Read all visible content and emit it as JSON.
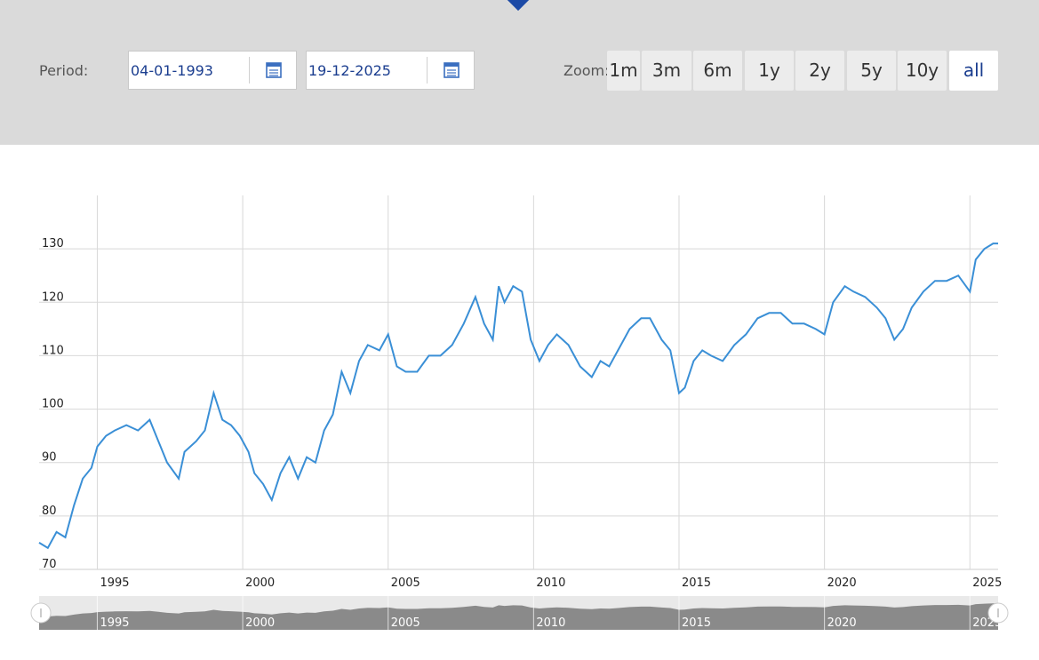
{
  "toolbar": {
    "period_label": "Period:",
    "start_date": "04-01-1993",
    "end_date": "19-12-2025",
    "zoom_label": "Zoom:",
    "zoom_options": [
      "1m",
      "3m",
      "6m",
      "1y",
      "2y",
      "5y",
      "10y",
      "all"
    ],
    "zoom_selected": "all",
    "calendar_icon": "calendar-icon"
  },
  "colors": {
    "line": "#3a8fd6",
    "navigator_fill": "#8a8a8a",
    "active_text": "#1a3d8f"
  },
  "chart_data": {
    "type": "line",
    "title": "",
    "xlabel": "",
    "ylabel": "",
    "xlim": [
      1993.0,
      2025.97
    ],
    "ylim": [
      70,
      140
    ],
    "yticks": [
      70,
      80,
      90,
      100,
      110,
      120,
      130
    ],
    "xticks": [
      1995,
      2000,
      2005,
      2010,
      2015,
      2020,
      2025
    ],
    "grid": true,
    "legend": "none",
    "series": [
      {
        "x": [
          1993.0,
          1993.3,
          1993.6,
          1993.9,
          1994.2,
          1994.5,
          1994.8,
          1995.0,
          1995.3,
          1995.6,
          1996.0,
          1996.4,
          1996.8,
          1997.1,
          1997.4,
          1997.8,
          1998.0,
          1998.4,
          1998.7,
          1999.0,
          1999.3,
          1999.6,
          1999.9,
          2000.2,
          2000.4,
          2000.7,
          2001.0,
          2001.3,
          2001.6,
          2001.9,
          2002.2,
          2002.5,
          2002.8,
          2003.1,
          2003.4,
          2003.7,
          2004.0,
          2004.3,
          2004.7,
          2005.0,
          2005.3,
          2005.6,
          2006.0,
          2006.4,
          2006.8,
          2007.2,
          2007.6,
          2008.0,
          2008.3,
          2008.6,
          2008.8,
          2009.0,
          2009.3,
          2009.6,
          2009.9,
          2010.2,
          2010.5,
          2010.8,
          2011.2,
          2011.6,
          2012.0,
          2012.3,
          2012.6,
          2012.9,
          2013.3,
          2013.7,
          2014.0,
          2014.4,
          2014.7,
          2015.0,
          2015.2,
          2015.5,
          2015.8,
          2016.1,
          2016.5,
          2016.9,
          2017.3,
          2017.7,
          2018.1,
          2018.5,
          2018.9,
          2019.3,
          2019.7,
          2020.0,
          2020.3,
          2020.7,
          2021.0,
          2021.4,
          2021.8,
          2022.1,
          2022.4,
          2022.7,
          2023.0,
          2023.4,
          2023.8,
          2024.2,
          2024.6,
          2025.0,
          2025.2,
          2025.5,
          2025.8,
          2025.97
        ],
        "values": [
          75,
          74,
          77,
          76,
          82,
          87,
          89,
          93,
          95,
          96,
          97,
          96,
          98,
          94,
          90,
          87,
          92,
          94,
          96,
          103,
          98,
          97,
          95,
          92,
          88,
          86,
          83,
          88,
          91,
          87,
          91,
          90,
          96,
          99,
          107,
          103,
          109,
          112,
          111,
          114,
          108,
          107,
          107,
          110,
          110,
          112,
          116,
          121,
          116,
          113,
          123,
          120,
          123,
          122,
          113,
          109,
          112,
          114,
          112,
          108,
          106,
          109,
          108,
          111,
          115,
          117,
          117,
          113,
          111,
          103,
          104,
          109,
          111,
          110,
          109,
          112,
          114,
          117,
          118,
          118,
          116,
          116,
          115,
          114,
          120,
          123,
          122,
          121,
          119,
          117,
          113,
          115,
          119,
          122,
          124,
          124,
          125,
          122,
          128,
          130,
          131,
          131
        ]
      }
    ]
  }
}
